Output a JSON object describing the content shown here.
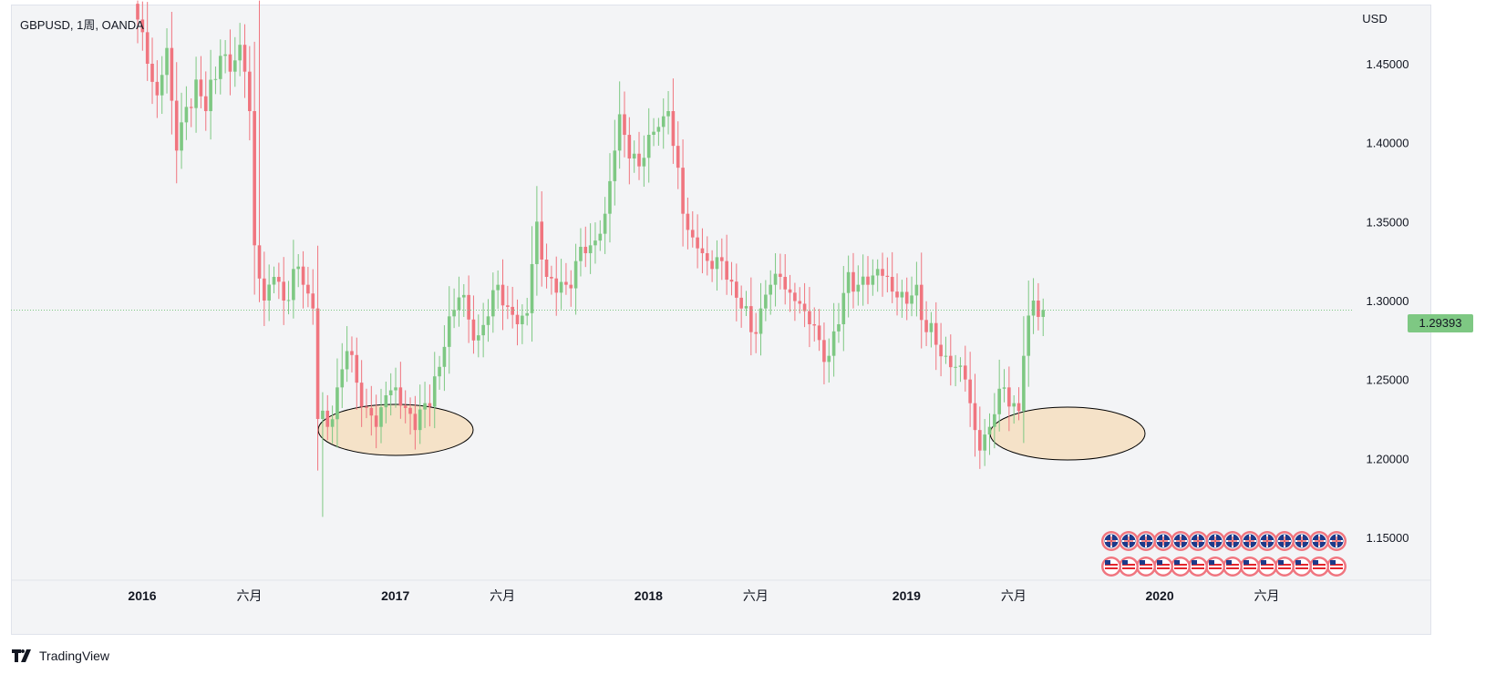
{
  "header": {
    "title": "GBPUSD, 1周, OANDA"
  },
  "currency": "USD",
  "last_price": "1.29393",
  "watermark": "TradingView",
  "colors": {
    "up": "#7ec883",
    "down": "#f0757f",
    "background": "#f3f4f6",
    "ellipse_fill": "#f5e2c8",
    "grid_line": "#e0e3eb"
  },
  "chart_data": {
    "type": "candlestick",
    "title": "GBPUSD, 1周, OANDA",
    "ylabel": "USD",
    "ylim": [
      1.125,
      1.485
    ],
    "y_ticks": [
      "1.15000",
      "1.20000",
      "1.25000",
      "1.30000",
      "1.35000",
      "1.40000",
      "1.45000"
    ],
    "x_ticks": [
      "2016",
      "六月",
      "2017",
      "六月",
      "2018",
      "六月",
      "2019",
      "六月",
      "2020",
      "六月"
    ],
    "last_price": 1.29393,
    "grid": false,
    "annotations": [
      {
        "type": "ellipse",
        "price_range": [
          1.2,
          1.233
        ],
        "period": "2016-10 to 2017-03"
      },
      {
        "type": "ellipse",
        "price_range": [
          1.198,
          1.231
        ],
        "period": "2019-07 to 2019-10"
      }
    ],
    "keypoints": [
      [
        0,
        1.478
      ],
      [
        2,
        1.45
      ],
      [
        4,
        1.43
      ],
      [
        6,
        1.46
      ],
      [
        8,
        1.395
      ],
      [
        12,
        1.44
      ],
      [
        14,
        1.42
      ],
      [
        17,
        1.455
      ],
      [
        19,
        1.445
      ],
      [
        21,
        1.462
      ],
      [
        22,
        1.445
      ],
      [
        23,
        1.42
      ],
      [
        24,
        1.335
      ],
      [
        26,
        1.3
      ],
      [
        28,
        1.315
      ],
      [
        30,
        1.3
      ],
      [
        32,
        1.32
      ],
      [
        34,
        1.31
      ],
      [
        36,
        1.295
      ],
      [
        37,
        1.225
      ],
      [
        39,
        1.22
      ],
      [
        41,
        1.245
      ],
      [
        43,
        1.268
      ],
      [
        45,
        1.248
      ],
      [
        47,
        1.232
      ],
      [
        49,
        1.22
      ],
      [
        51,
        1.24
      ],
      [
        53,
        1.245
      ],
      [
        55,
        1.232
      ],
      [
        57,
        1.218
      ],
      [
        59,
        1.235
      ],
      [
        62,
        1.258
      ],
      [
        64,
        1.29
      ],
      [
        66,
        1.302
      ],
      [
        68,
        1.288
      ],
      [
        70,
        1.278
      ],
      [
        72,
        1.29
      ],
      [
        74,
        1.31
      ],
      [
        76,
        1.296
      ],
      [
        78,
        1.285
      ],
      [
        80,
        1.292
      ],
      [
        82,
        1.35
      ],
      [
        84,
        1.315
      ],
      [
        86,
        1.305
      ],
      [
        88,
        1.31
      ],
      [
        90,
        1.325
      ],
      [
        92,
        1.33
      ],
      [
        94,
        1.338
      ],
      [
        96,
        1.355
      ],
      [
        98,
        1.395
      ],
      [
        99,
        1.418
      ],
      [
        101,
        1.39
      ],
      [
        103,
        1.385
      ],
      [
        105,
        1.405
      ],
      [
        107,
        1.41
      ],
      [
        109,
        1.42
      ],
      [
        110,
        1.398
      ],
      [
        112,
        1.355
      ],
      [
        114,
        1.34
      ],
      [
        116,
        1.33
      ],
      [
        118,
        1.32
      ],
      [
        120,
        1.325
      ],
      [
        122,
        1.312
      ],
      [
        124,
        1.295
      ],
      [
        126,
        1.28
      ],
      [
        128,
        1.295
      ],
      [
        130,
        1.31
      ],
      [
        132,
        1.315
      ],
      [
        134,
        1.305
      ],
      [
        136,
        1.298
      ],
      [
        138,
        1.285
      ],
      [
        140,
        1.275
      ],
      [
        142,
        1.265
      ],
      [
        144,
        1.285
      ],
      [
        146,
        1.318
      ],
      [
        148,
        1.31
      ],
      [
        150,
        1.31
      ],
      [
        152,
        1.32
      ],
      [
        154,
        1.315
      ],
      [
        156,
        1.302
      ],
      [
        158,
        1.298
      ],
      [
        160,
        1.31
      ],
      [
        162,
        1.28
      ],
      [
        164,
        1.272
      ],
      [
        166,
        1.265
      ],
      [
        168,
        1.258
      ],
      [
        170,
        1.25
      ],
      [
        171,
        1.235
      ],
      [
        172,
        1.218
      ],
      [
        173,
        1.205
      ],
      [
        175,
        1.22
      ],
      [
        176,
        1.228
      ],
      [
        178,
        1.245
      ],
      [
        180,
        1.235
      ],
      [
        181,
        1.23
      ],
      [
        182,
        1.265
      ],
      [
        184,
        1.3
      ],
      [
        186,
        1.294
      ]
    ],
    "event_icons": {
      "gbp_row_count": 14,
      "usd_row_count": 14
    }
  }
}
